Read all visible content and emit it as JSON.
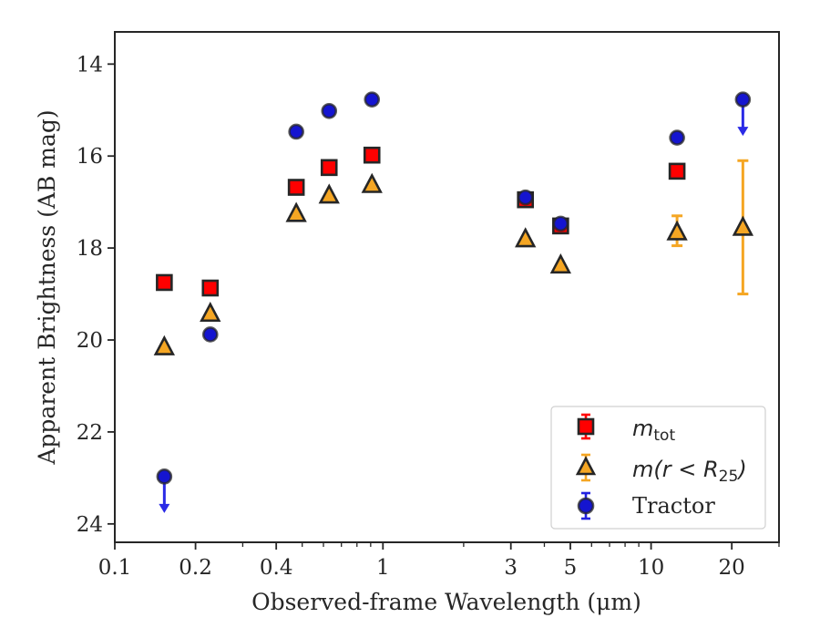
{
  "chart_data": {
    "type": "scatter",
    "xscale": "log",
    "yscale": "linear",
    "y_inverted": true,
    "xlim": [
      0.1,
      30
    ],
    "ylim": [
      24.4,
      13.3
    ],
    "xlabel": "Observed-frame Wavelength (μm)",
    "ylabel": "Apparent Brightness (AB mag)",
    "xticks": [
      0.1,
      0.2,
      0.4,
      1,
      3,
      5,
      10,
      20
    ],
    "xtick_labels": [
      "0.1",
      "0.2",
      "0.4",
      "1",
      "3",
      "5",
      "10",
      "20"
    ],
    "yticks": [
      14,
      16,
      18,
      20,
      22,
      24
    ],
    "ytick_labels": [
      "14",
      "16",
      "18",
      "20",
      "22",
      "24"
    ],
    "grid": false,
    "legend_position": "bottom-right",
    "series": [
      {
        "name": "m_tot",
        "marker": "square",
        "color": "#ff0000",
        "points": [
          {
            "x": 0.153,
            "y": 18.75
          },
          {
            "x": 0.227,
            "y": 18.87
          },
          {
            "x": 0.475,
            "y": 16.68
          },
          {
            "x": 0.63,
            "y": 16.25
          },
          {
            "x": 0.91,
            "y": 15.98
          },
          {
            "x": 3.4,
            "y": 16.95
          },
          {
            "x": 4.6,
            "y": 17.52
          },
          {
            "x": 12.5,
            "y": 16.33
          }
        ]
      },
      {
        "name": "m(r < R25)",
        "marker": "triangle",
        "color": "#f5a623",
        "points": [
          {
            "x": 0.153,
            "y": 20.15
          },
          {
            "x": 0.227,
            "y": 19.42
          },
          {
            "x": 0.475,
            "y": 17.25
          },
          {
            "x": 0.63,
            "y": 16.85
          },
          {
            "x": 0.91,
            "y": 16.62
          },
          {
            "x": 3.4,
            "y": 17.8
          },
          {
            "x": 4.6,
            "y": 18.37
          },
          {
            "x": 12.5,
            "y": 17.65,
            "yerr": [
              0.35,
              0.3
            ]
          },
          {
            "x": 22,
            "y": 17.55,
            "yerr": [
              1.45,
              1.45
            ]
          }
        ]
      },
      {
        "name": "Tractor",
        "marker": "circle",
        "color": "#1515d0",
        "points": [
          {
            "x": 0.153,
            "y": 22.97,
            "upper_limit": true
          },
          {
            "x": 0.227,
            "y": 19.88
          },
          {
            "x": 0.475,
            "y": 15.47
          },
          {
            "x": 0.63,
            "y": 15.02
          },
          {
            "x": 0.91,
            "y": 14.77
          },
          {
            "x": 3.4,
            "y": 16.9
          },
          {
            "x": 4.6,
            "y": 17.47
          },
          {
            "x": 12.5,
            "y": 15.6
          },
          {
            "x": 22,
            "y": 14.77,
            "upper_limit": true
          }
        ]
      }
    ],
    "legend": {
      "m_tot": {
        "base": "m",
        "sub": "tot"
      },
      "m_r25": {
        "pre": "m",
        "mid": "(r < R",
        "sub": "25",
        "post": ")"
      },
      "tractor": "Tractor"
    }
  }
}
